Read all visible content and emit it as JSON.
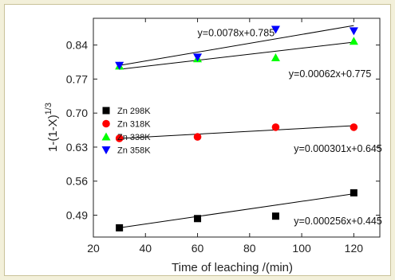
{
  "chart_data": {
    "type": "scatter",
    "xlabel": "Time of leaching /(min)",
    "ylabel_main": "1-(1-X)",
    "ylabel_sup": "1/3",
    "xlim": [
      20,
      130
    ],
    "ylim": [
      0.445,
      0.895
    ],
    "xticks": [
      20,
      40,
      60,
      80,
      100,
      120
    ],
    "yticks": [
      0.49,
      0.56,
      0.63,
      0.7,
      0.77,
      0.84
    ],
    "ytick_labels": [
      "0.49",
      "0.56",
      "0.63",
      "0.70",
      "0.77",
      "0.84"
    ],
    "legend_position": "middle-left",
    "series": [
      {
        "name": "Zn 298K",
        "marker": "square",
        "color": "#000000",
        "x": [
          30,
          60,
          90,
          120
        ],
        "y": [
          0.464,
          0.483,
          0.488,
          0.536
        ],
        "fit": {
          "slope": 0.000256,
          "intercept": 0.445,
          "equation": "y=0.000256x+0.445"
        }
      },
      {
        "name": "Zn 318K",
        "marker": "circle",
        "color": "#ff0000",
        "x": [
          30,
          60,
          90,
          120
        ],
        "y": [
          0.648,
          0.651,
          0.671,
          0.671
        ],
        "fit": {
          "slope": 0.000301,
          "intercept": 0.645,
          "equation": "y=0.000301x+0.645"
        }
      },
      {
        "name": "Zn 338K",
        "marker": "triangle-up",
        "color": "#00ff00",
        "x": [
          30,
          60,
          90,
          120
        ],
        "y": [
          0.797,
          0.812,
          0.814,
          0.848
        ],
        "fit": {
          "slope": 0.00062,
          "intercept": 0.775,
          "equation": "y=0.00062x+0.775"
        }
      },
      {
        "name": "Zn 358K",
        "marker": "triangle-down",
        "color": "#0000ff",
        "x": [
          30,
          60,
          90,
          120
        ],
        "y": [
          0.798,
          0.815,
          0.872,
          0.869
        ],
        "fit": {
          "slope": 0.0078,
          "intercept": 0.785,
          "equation": "y=0.0078x+0.785"
        }
      }
    ]
  }
}
